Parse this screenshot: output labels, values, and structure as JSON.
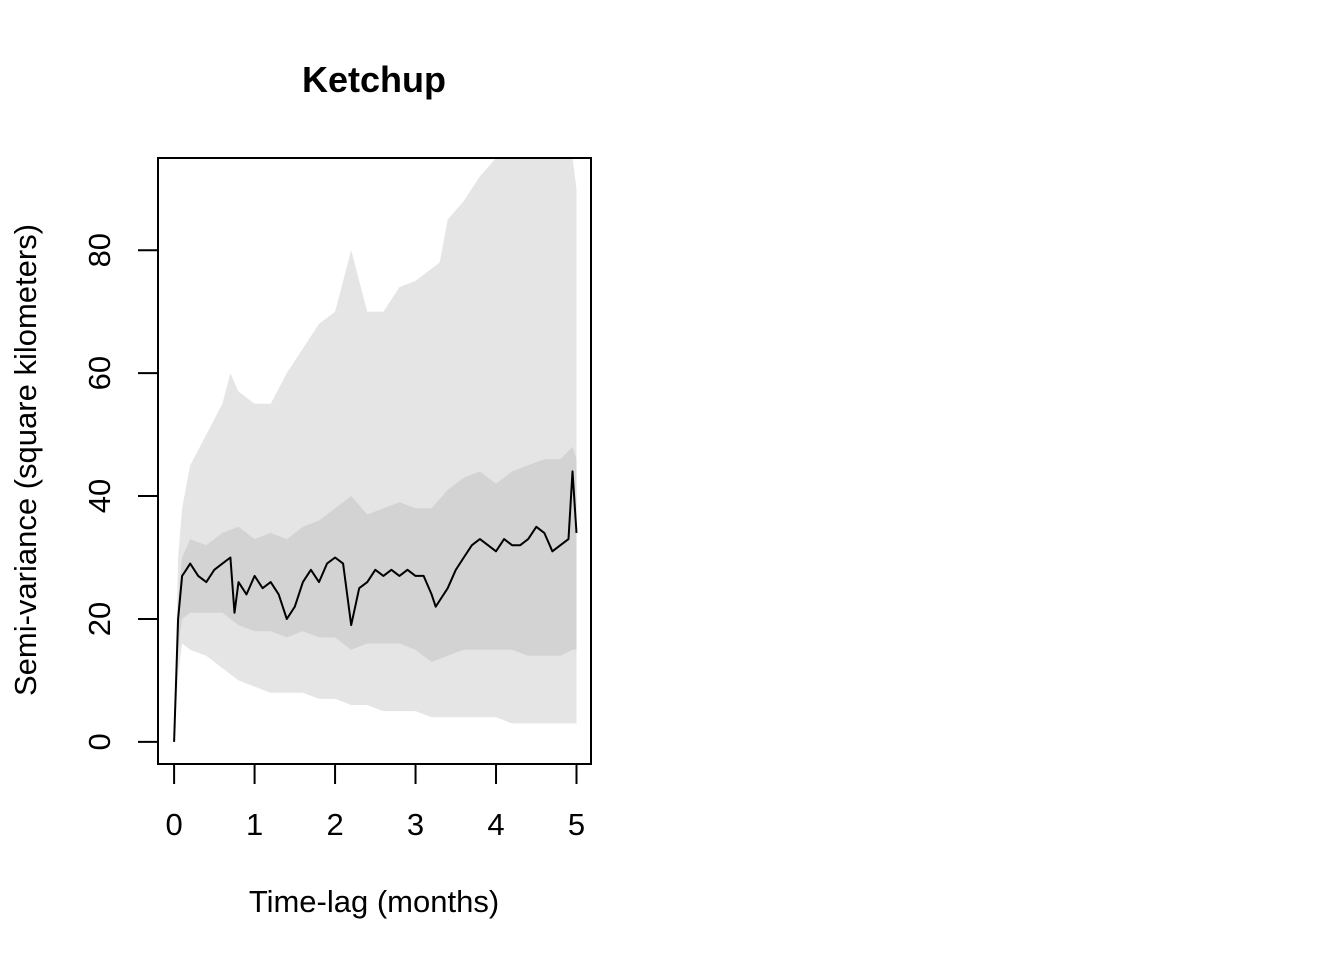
{
  "chart_data": {
    "type": "line",
    "title": "Ketchup",
    "xlabel": "Time-lag (months)",
    "ylabel": "Semi-variance (square kilometers)",
    "xlim": [
      -0.2,
      5.18
    ],
    "ylim": [
      -3.6,
      95
    ],
    "x_ticks": [
      0,
      1,
      2,
      3,
      4,
      5
    ],
    "y_ticks": [
      0,
      20,
      40,
      60,
      80
    ],
    "grid": false,
    "legend": "none",
    "colors": {
      "line": "#000000",
      "inner_band": "#d3d3d3",
      "outer_band": "#e5e5e5",
      "frame": "#000000"
    },
    "series": [
      {
        "role": "semi-variance",
        "x": [
          0,
          0.05,
          0.1,
          0.15,
          0.2,
          0.3,
          0.4,
          0.5,
          0.6,
          0.7,
          0.75,
          0.8,
          0.9,
          1.0,
          1.1,
          1.2,
          1.3,
          1.4,
          1.5,
          1.6,
          1.7,
          1.8,
          1.9,
          2.0,
          2.1,
          2.2,
          2.25,
          2.3,
          2.4,
          2.5,
          2.6,
          2.7,
          2.8,
          2.9,
          3.0,
          3.1,
          3.2,
          3.25,
          3.3,
          3.4,
          3.5,
          3.6,
          3.7,
          3.8,
          3.9,
          4.0,
          4.1,
          4.2,
          4.3,
          4.4,
          4.5,
          4.6,
          4.7,
          4.8,
          4.9,
          4.95,
          5.0
        ],
        "y": [
          0,
          20,
          27,
          28,
          29,
          27,
          26,
          28,
          29,
          30,
          21,
          26,
          24,
          27,
          25,
          26,
          24,
          20,
          22,
          26,
          28,
          26,
          29,
          30,
          29,
          19,
          22,
          25,
          26,
          28,
          27,
          28,
          27,
          28,
          27,
          27,
          24,
          22,
          23,
          25,
          28,
          30,
          32,
          33,
          32,
          31,
          33,
          32,
          32,
          33,
          35,
          34,
          31,
          32,
          33,
          44,
          34
        ]
      },
      {
        "role": "inner-band",
        "x": [
          0,
          0.05,
          0.1,
          0.2,
          0.4,
          0.6,
          0.8,
          1.0,
          1.2,
          1.4,
          1.6,
          1.8,
          2.0,
          2.2,
          2.4,
          2.6,
          2.8,
          3.0,
          3.2,
          3.4,
          3.6,
          3.8,
          4.0,
          4.2,
          4.4,
          4.6,
          4.8,
          4.95,
          5.0
        ],
        "lower": [
          0,
          15,
          20,
          21,
          21,
          21,
          19,
          18,
          18,
          17,
          18,
          17,
          17,
          15,
          16,
          16,
          16,
          15,
          13,
          14,
          15,
          15,
          15,
          15,
          14,
          14,
          14,
          15,
          15
        ],
        "upper": [
          0,
          23,
          30,
          33,
          32,
          34,
          35,
          33,
          34,
          33,
          35,
          36,
          38,
          40,
          37,
          38,
          39,
          38,
          38,
          41,
          43,
          44,
          42,
          44,
          45,
          46,
          46,
          48,
          46
        ]
      },
      {
        "role": "outer-band",
        "x": [
          0,
          0.05,
          0.1,
          0.2,
          0.4,
          0.6,
          0.7,
          0.8,
          1.0,
          1.2,
          1.4,
          1.6,
          1.8,
          2.0,
          2.2,
          2.4,
          2.6,
          2.8,
          3.0,
          3.2,
          3.3,
          3.4,
          3.6,
          3.8,
          4.0,
          4.2,
          4.4,
          4.6,
          4.8,
          4.95,
          5.0
        ],
        "lower": [
          0,
          11,
          16,
          15,
          14,
          12,
          11,
          10,
          9,
          8,
          8,
          8,
          7,
          7,
          6,
          6,
          5,
          5,
          5,
          4,
          4,
          4,
          4,
          4,
          4,
          3,
          3,
          3,
          3,
          3,
          3
        ],
        "upper": [
          0,
          30,
          38,
          45,
          50,
          55,
          60,
          57,
          55,
          55,
          60,
          64,
          68,
          70,
          80,
          70,
          70,
          74,
          75,
          77,
          78,
          85,
          88,
          92,
          95,
          95,
          95,
          95,
          95,
          95,
          90
        ]
      }
    ]
  }
}
